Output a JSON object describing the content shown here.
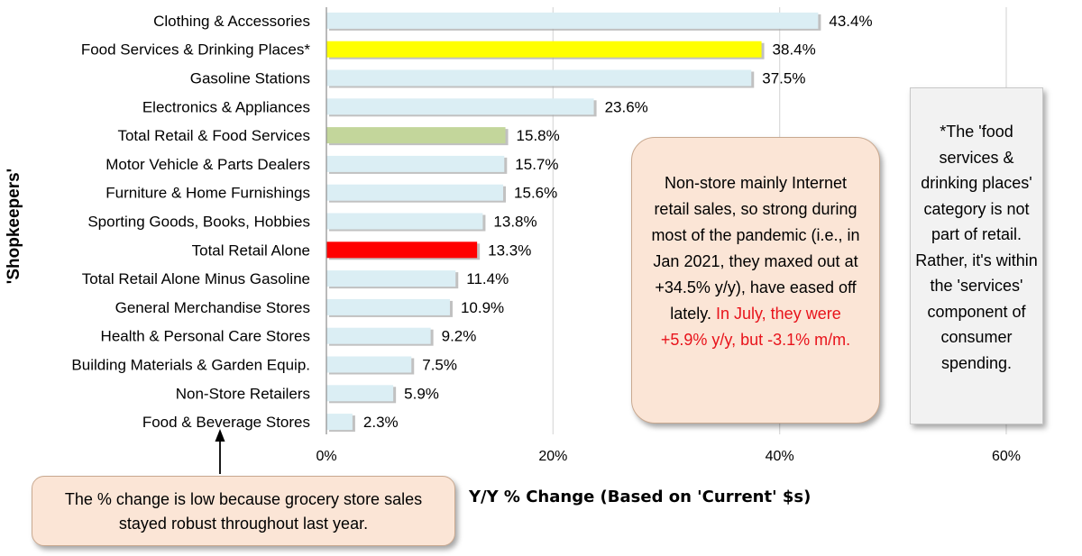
{
  "chart_data": {
    "type": "bar",
    "orientation": "horizontal",
    "categories": [
      "Clothing & Accessories",
      "Food Services & Drinking Places*",
      "Gasoline Stations",
      "Electronics & Appliances",
      "Total Retail & Food Services",
      "Motor Vehicle & Parts Dealers",
      "Furniture & Home Furnishings",
      "Sporting Goods, Books, Hobbies",
      "Total Retail Alone",
      "Total Retail Alone Minus Gasoline",
      "General Merchandise Stores",
      "Health & Personal Care Stores",
      "Building Materials & Garden Equip.",
      "Non-Store Retailers",
      "Food & Beverage Stores"
    ],
    "values": [
      43.4,
      38.4,
      37.5,
      23.6,
      15.8,
      15.7,
      15.6,
      13.8,
      13.3,
      11.4,
      10.9,
      9.2,
      7.5,
      5.9,
      2.3
    ],
    "value_labels": [
      "43.4%",
      "38.4%",
      "37.5%",
      "23.6%",
      "15.8%",
      "15.7%",
      "15.6%",
      "13.8%",
      "13.3%",
      "11.4%",
      "10.9%",
      "9.2%",
      "7.5%",
      "5.9%",
      "2.3%"
    ],
    "bar_colors": [
      "#dbeef4",
      "#ffff00",
      "#dbeef4",
      "#dbeef4",
      "#c3d69b",
      "#dbeef4",
      "#dbeef4",
      "#dbeef4",
      "#ff0000",
      "#dbeef4",
      "#dbeef4",
      "#dbeef4",
      "#dbeef4",
      "#dbeef4",
      "#dbeef4"
    ],
    "xlim": [
      0,
      60
    ],
    "xticks": [
      0,
      20,
      40,
      60
    ],
    "xtick_labels": [
      "0%",
      "20%",
      "40%",
      "60%"
    ],
    "xlabel": "Y/Y % Change (Based on 'Current' $s)",
    "ylabel": "'Shopkeepers'",
    "grid": "vertical"
  },
  "annotations": {
    "middle_text": "Non-store mainly Internet retail sales, so strong during most of the pandemic (i.e., in Jan 2021, they maxed out at +34.5% y/y), have eased off lately.",
    "middle_highlight": "In July, they were +5.9% y/y, but -3.1% m/m.",
    "right_note": "*The 'food services & drinking places' category is not part of retail. Rather, it's within the 'services' component of consumer spending.",
    "bottom_note": "The % change is low because grocery store sales stayed robust throughout last year."
  }
}
